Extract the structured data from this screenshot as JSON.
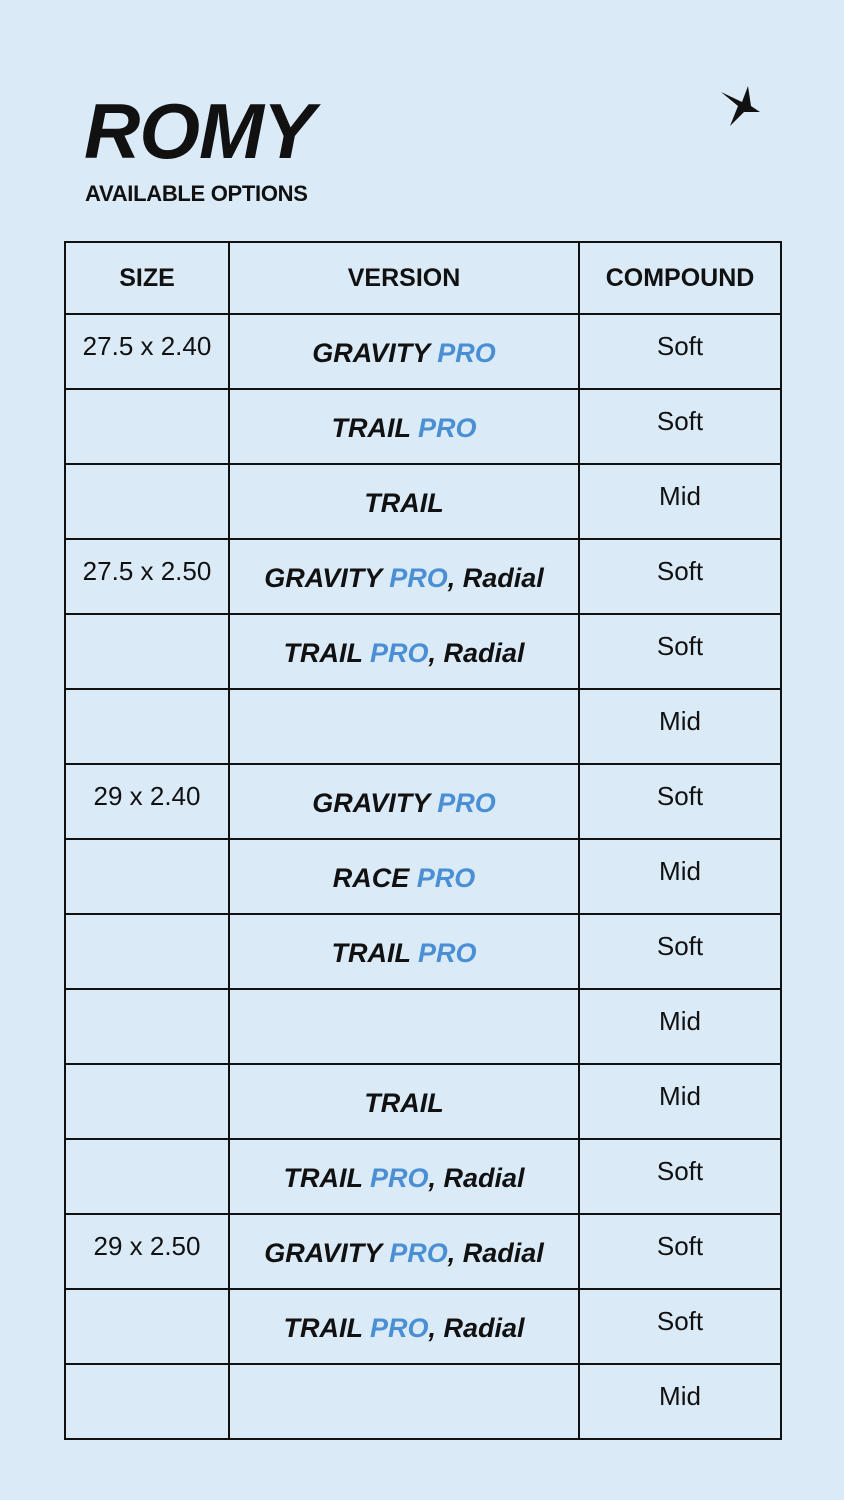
{
  "title": "ROMY",
  "subtitle": "AVAILABLE OPTIONS",
  "logo_icon": "bird-logo-icon",
  "colors": {
    "background": "#dbeaf7",
    "accent": "#4a8fd4"
  },
  "table": {
    "headers": [
      "SIZE",
      "VERSION",
      "COMPOUND"
    ],
    "rows": [
      {
        "size": "27.5 x 2.40",
        "main": "GRAVITY",
        "pro": "PRO",
        "suffix": "",
        "compound": "Soft"
      },
      {
        "size": "",
        "main": "TRAIL",
        "pro": "PRO",
        "suffix": "",
        "compound": "Soft"
      },
      {
        "size": "",
        "main": "TRAIL",
        "pro": "",
        "suffix": "",
        "compound": "Mid"
      },
      {
        "size": "27.5 x 2.50",
        "main": "GRAVITY",
        "pro": "PRO",
        "suffix": ", Radial",
        "compound": "Soft"
      },
      {
        "size": "",
        "main": "TRAIL",
        "pro": "PRO",
        "suffix": ", Radial",
        "compound": "Soft"
      },
      {
        "size": "",
        "main": "",
        "pro": "",
        "suffix": "",
        "compound": "Mid"
      },
      {
        "size": "29 x 2.40",
        "main": "GRAVITY",
        "pro": "PRO",
        "suffix": "",
        "compound": "Soft"
      },
      {
        "size": "",
        "main": "RACE",
        "pro": "PRO",
        "suffix": "",
        "compound": "Mid"
      },
      {
        "size": "",
        "main": "TRAIL",
        "pro": "PRO",
        "suffix": "",
        "compound": "Soft"
      },
      {
        "size": "",
        "main": "",
        "pro": "",
        "suffix": "",
        "compound": "Mid"
      },
      {
        "size": "",
        "main": "TRAIL",
        "pro": "",
        "suffix": "",
        "compound": "Mid"
      },
      {
        "size": "",
        "main": "TRAIL",
        "pro": "PRO",
        "suffix": ", Radial",
        "compound": "Soft"
      },
      {
        "size": "29 x 2.50",
        "main": "GRAVITY",
        "pro": "PRO",
        "suffix": ", Radial",
        "compound": "Soft"
      },
      {
        "size": "",
        "main": "TRAIL",
        "pro": "PRO",
        "suffix": ", Radial",
        "compound": "Soft"
      },
      {
        "size": "",
        "main": "",
        "pro": "",
        "suffix": "",
        "compound": "Mid"
      }
    ]
  }
}
